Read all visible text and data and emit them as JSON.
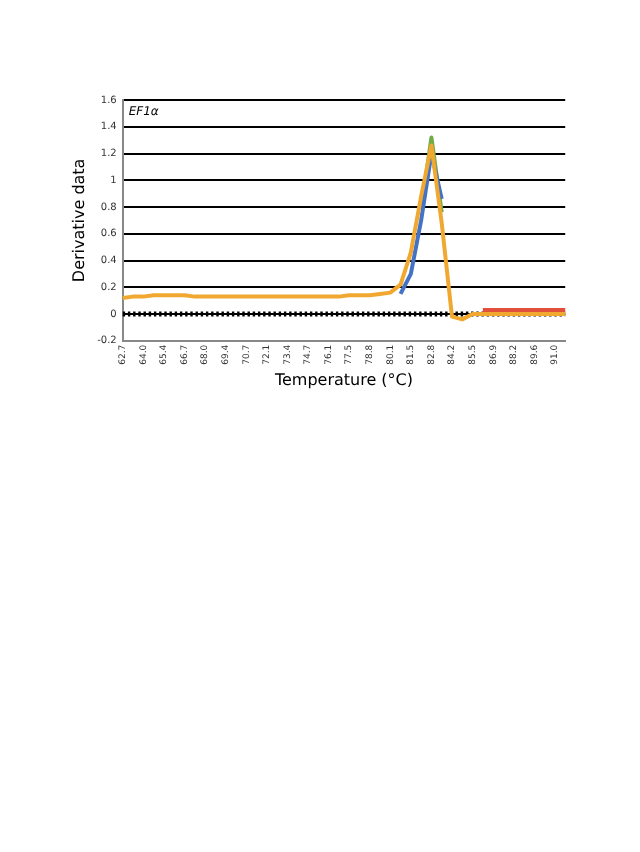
{
  "chart_data": {
    "type": "line",
    "xlabel": "Temperature (°C)",
    "ylabel": "Derivative data",
    "annotations": [
      "EF1α"
    ],
    "categories": [
      "62.7",
      null,
      "64.0",
      null,
      "65.4",
      null,
      "66.7",
      null,
      "68.0",
      null,
      "69.4",
      null,
      "70.7",
      null,
      "72.1",
      null,
      "73.4",
      null,
      "74.7",
      null,
      "76.1",
      null,
      "77.5",
      null,
      "78.8",
      null,
      "80.1",
      null,
      "81.5",
      null,
      "82.8",
      null,
      "84.2",
      null,
      "85.5",
      null,
      "86.9",
      null,
      "88.2",
      null,
      "89.6",
      null,
      "91.0",
      null
    ],
    "series": [
      {
        "color": "#f0a830",
        "values": [
          0.12,
          0.13,
          0.13,
          0.14,
          0.14,
          0.14,
          0.14,
          0.13,
          0.13,
          0.13,
          0.13,
          0.13,
          0.13,
          0.13,
          0.13,
          0.13,
          0.13,
          0.13,
          0.13,
          0.13,
          0.13,
          0.13,
          0.14,
          0.14,
          0.14,
          0.15,
          0.16,
          0.22,
          0.46,
          0.88,
          1.26,
          0.68,
          -0.02,
          -0.04,
          0.0,
          0.0,
          0.0,
          0.0,
          0.0,
          0.0,
          0.0,
          0.0,
          0.0,
          0.0
        ]
      },
      {
        "color": "#4472c4",
        "values": [
          null,
          null,
          null,
          null,
          null,
          null,
          null,
          null,
          null,
          null,
          null,
          null,
          null,
          null,
          null,
          null,
          null,
          null,
          null,
          null,
          null,
          null,
          null,
          null,
          null,
          null,
          null,
          0.15,
          0.3,
          0.7,
          1.2,
          0.86,
          null,
          null,
          null,
          null,
          null,
          null,
          null,
          null,
          null,
          null,
          null,
          null
        ]
      },
      {
        "color": "#70ad47",
        "values": [
          null,
          null,
          null,
          null,
          null,
          null,
          null,
          null,
          null,
          null,
          null,
          null,
          null,
          null,
          null,
          null,
          null,
          null,
          null,
          null,
          null,
          null,
          null,
          null,
          null,
          null,
          null,
          null,
          null,
          0.78,
          1.32,
          0.76,
          null,
          null,
          null,
          null,
          null,
          null,
          null,
          null,
          null,
          null,
          null,
          null
        ]
      },
      {
        "color": "#e0503a",
        "values": [
          null,
          null,
          null,
          null,
          null,
          null,
          null,
          null,
          null,
          null,
          null,
          null,
          null,
          null,
          null,
          null,
          null,
          null,
          null,
          null,
          null,
          null,
          null,
          null,
          null,
          null,
          null,
          null,
          null,
          null,
          null,
          null,
          null,
          null,
          null,
          0.03,
          0.03,
          0.03,
          0.03,
          0.03,
          0.03,
          0.03,
          0.03,
          0.03
        ]
      }
    ],
    "ylim": [
      -0.2,
      1.6
    ],
    "yticks": [
      -0.2,
      0,
      0.2,
      0.4,
      0.6,
      0.8,
      1,
      1.2,
      1.4,
      1.6
    ],
    "grid": "y",
    "legend": false,
    "marker": "none",
    "line_style": "solid",
    "ref_lines": [
      {
        "axis": "y",
        "value": 0,
        "color": "#000000",
        "line_style": "dotted"
      }
    ]
  }
}
